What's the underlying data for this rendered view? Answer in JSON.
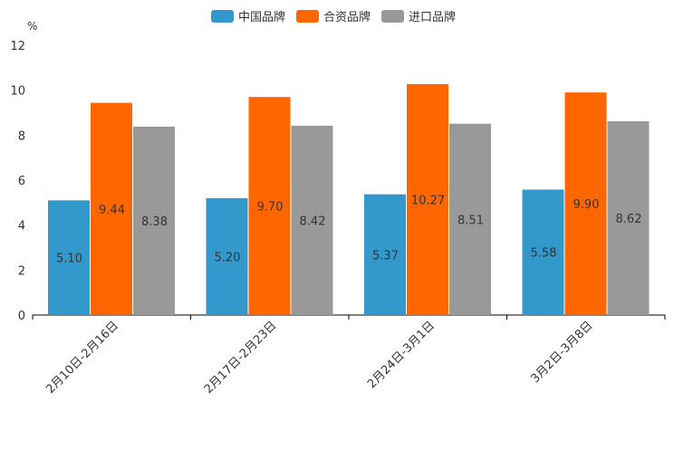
{
  "chart_data": {
    "type": "bar",
    "title": "",
    "ylabel": "%",
    "xlabel": "",
    "ylim": [
      0,
      12
    ],
    "yticks": [
      "0",
      "2",
      "4",
      "6",
      "8",
      "10",
      "12"
    ],
    "categories": [
      "2月10日-2月16日",
      "2月17日-2月23日",
      "2月24日-3月1日",
      "3月2日-3月8日"
    ],
    "series": [
      {
        "name": "中国品牌",
        "color": "#3399CC",
        "values": [
          5.1,
          5.2,
          5.37,
          5.58
        ],
        "labels": [
          "5.10",
          "5.20",
          "5.37",
          "5.58"
        ]
      },
      {
        "name": "合资品牌",
        "color": "#FF6600",
        "values": [
          9.44,
          9.7,
          10.27,
          9.9
        ],
        "labels": [
          "9.44",
          "9.70",
          "10.27",
          "9.90"
        ]
      },
      {
        "name": "进口品牌",
        "color": "#999999",
        "values": [
          8.38,
          8.42,
          8.51,
          8.62
        ],
        "labels": [
          "8.38",
          "8.42",
          "8.51",
          "8.62"
        ]
      }
    ],
    "legend_position": "top-center"
  }
}
